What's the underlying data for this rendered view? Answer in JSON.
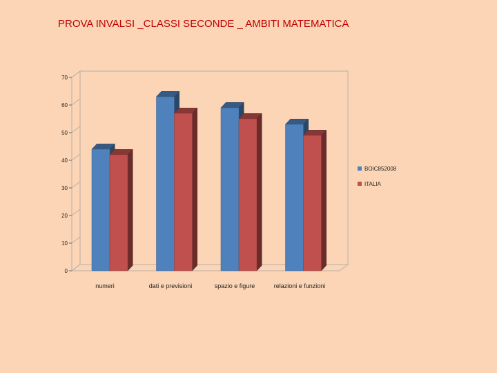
{
  "title": "PROVA INVALSI _CLASSI SECONDE _ AMBITI MATEMATICA",
  "chart_data": {
    "type": "bar",
    "title": "PROVA INVALSI _CLASSI SECONDE _ AMBITI MATEMATICA",
    "categories": [
      "numeri",
      "dati e previsioni",
      "spazio e figure",
      "relazioni e funzioni"
    ],
    "series": [
      {
        "name": "BOIC852008",
        "values": [
          44,
          63,
          59,
          53
        ],
        "color": "#4f81bd"
      },
      {
        "name": "ITALIA",
        "values": [
          42,
          57,
          55,
          49
        ],
        "color": "#c0504d"
      }
    ],
    "yticks": [
      0,
      10,
      20,
      30,
      40,
      50,
      60,
      70
    ],
    "ylim": [
      0,
      70
    ],
    "grid": false,
    "three_d": true,
    "legend_position": "right"
  }
}
